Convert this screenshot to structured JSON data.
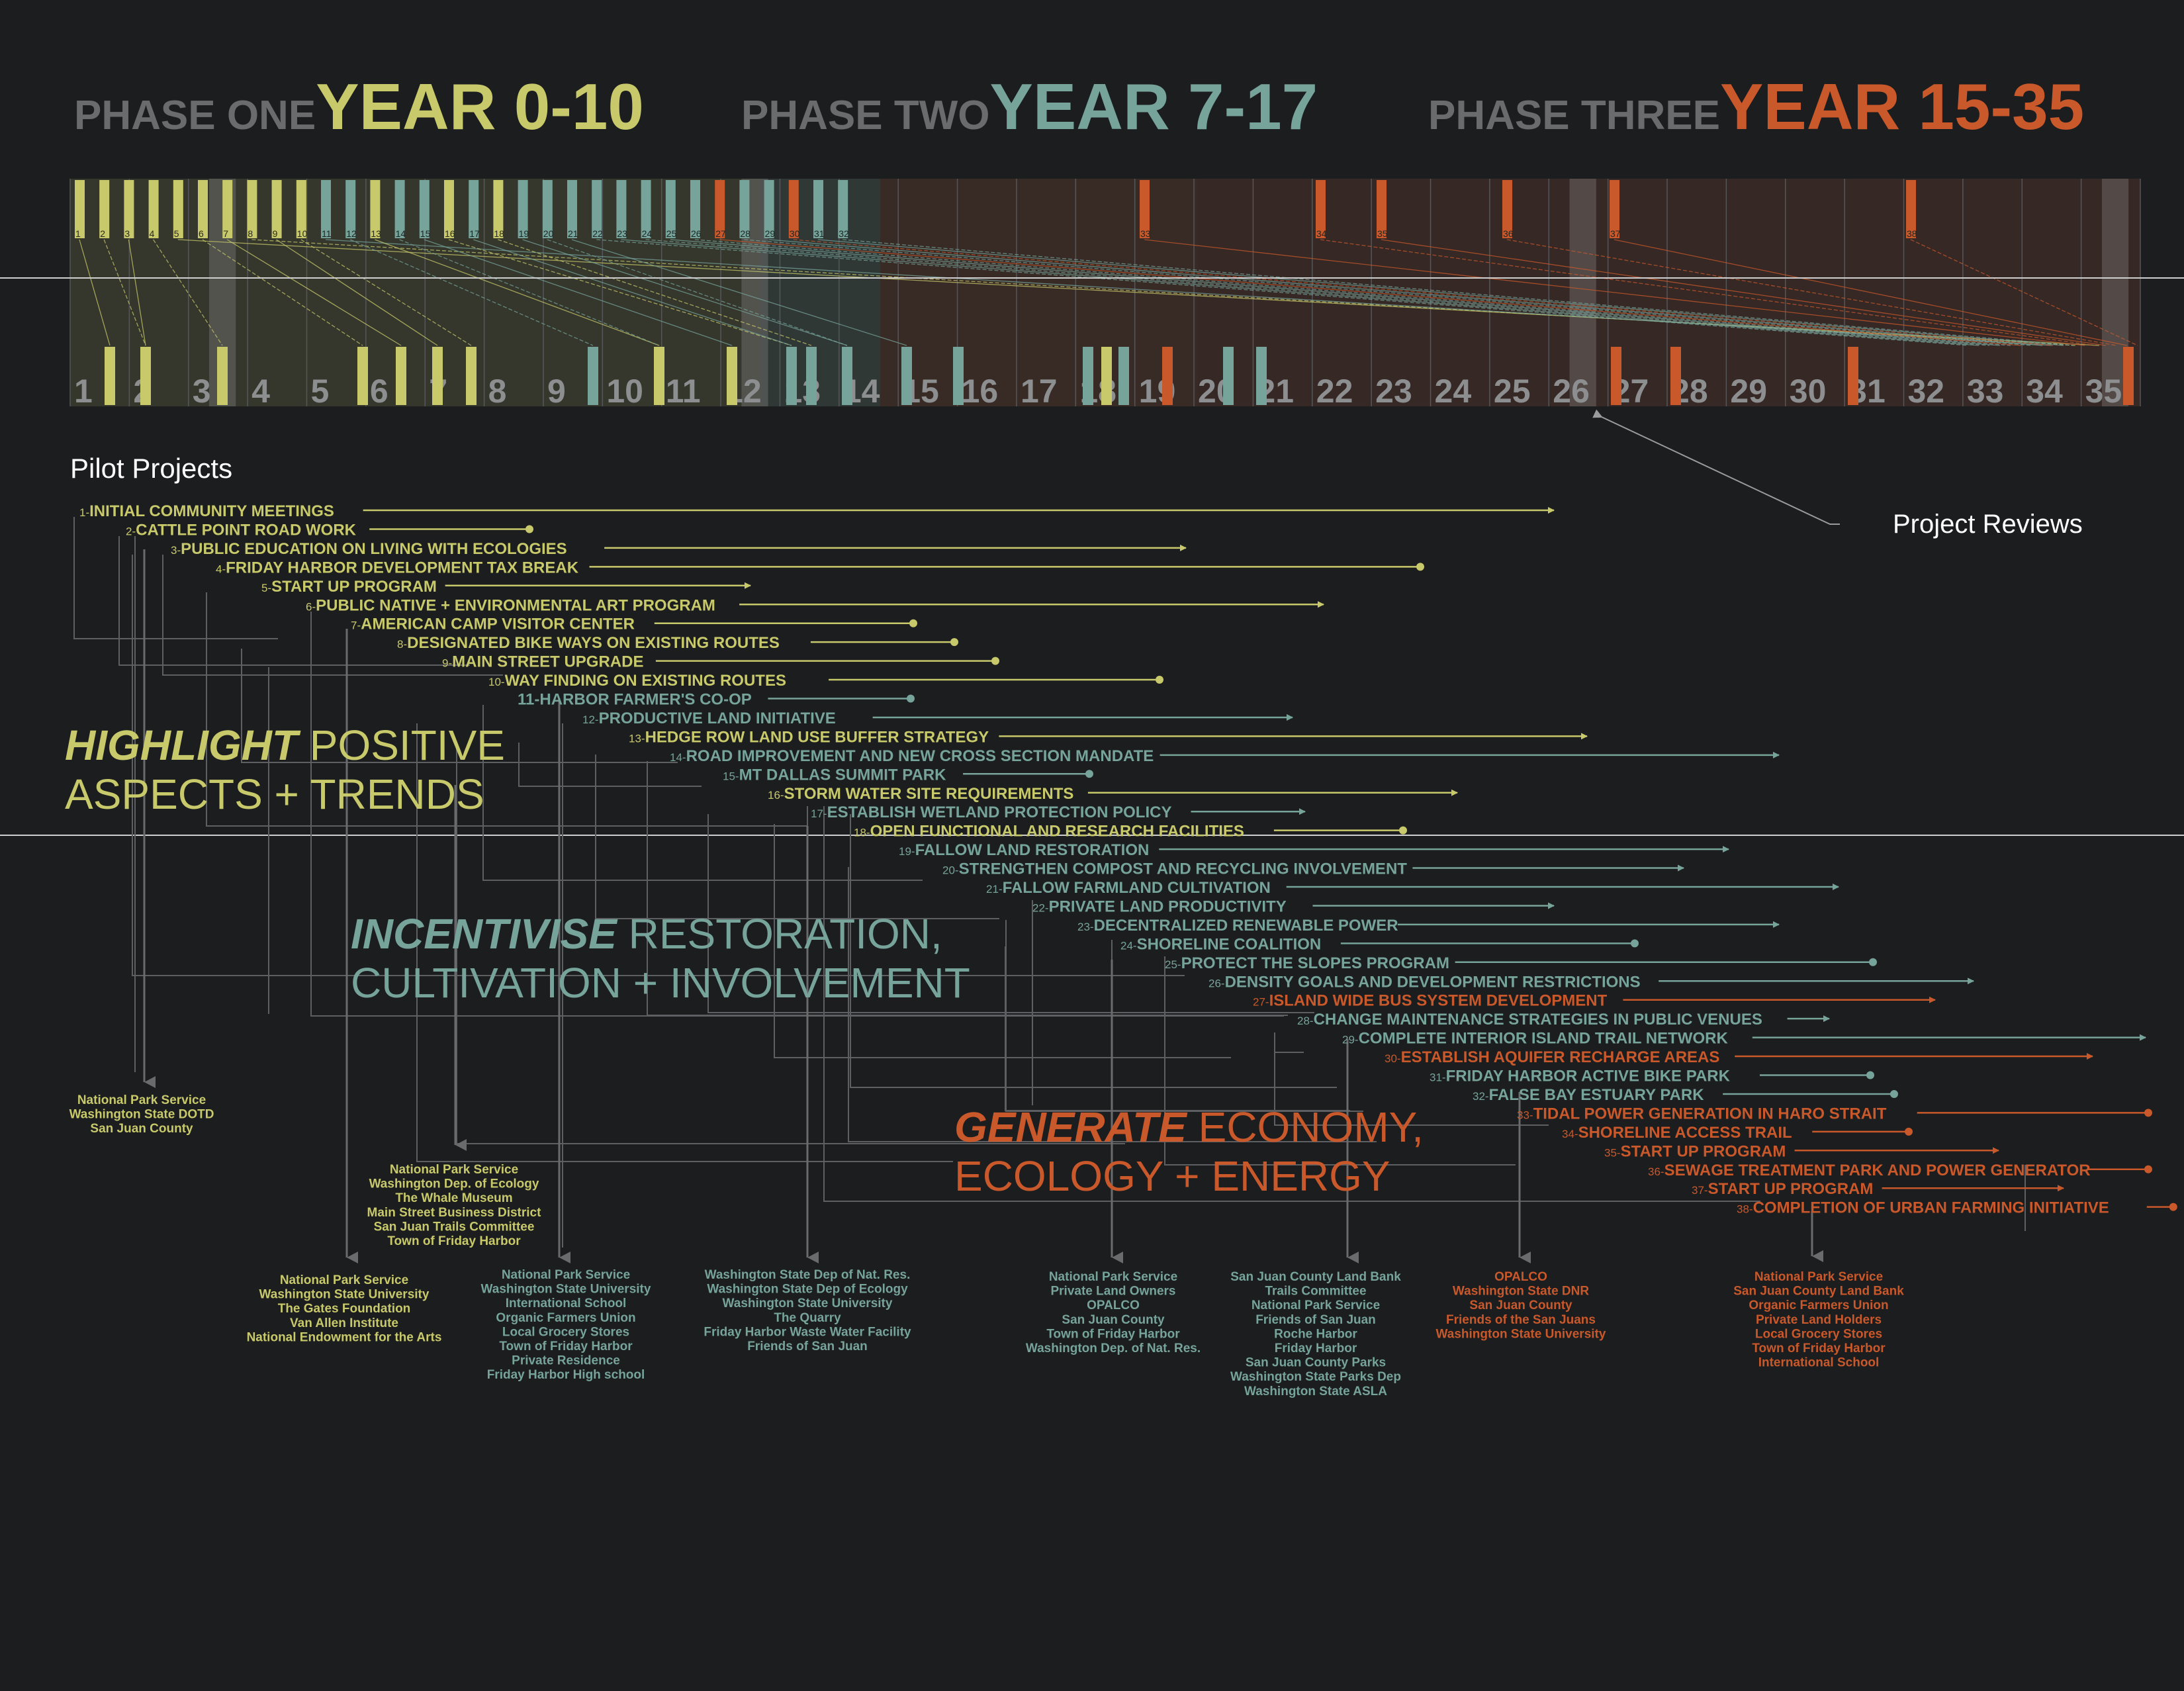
{
  "colors": {
    "bg": "#1c1d1f",
    "phase1": "#c8c96a",
    "phase2": "#76a39a",
    "phase3": "#c9582b",
    "gray": "#6a6b6d",
    "white": "#ffffff"
  },
  "phases": [
    {
      "label": "PHASE ONE",
      "years": "YEAR 0-10",
      "color": "#c8c96a"
    },
    {
      "label": "PHASE TWO",
      "years": "YEAR 7-17",
      "color": "#76a39a"
    },
    {
      "label": "PHASE THREE",
      "years": "YEAR 15-35",
      "color": "#c9582b"
    }
  ],
  "timeline": {
    "year_labels": [
      "1",
      "2",
      "3",
      "4",
      "5",
      "6",
      "7",
      "8",
      "9",
      "10",
      "11",
      "12",
      "13",
      "14",
      "15",
      "16",
      "17",
      "18",
      "19",
      "20",
      "21",
      "22",
      "23",
      "24",
      "25",
      "26",
      "27",
      "28",
      "29",
      "30",
      "31",
      "32",
      "33",
      "34",
      "35"
    ],
    "top_bars": [
      {
        "n": "1",
        "p": 1
      },
      {
        "n": "2",
        "p": 1
      },
      {
        "n": "3",
        "p": 1
      },
      {
        "n": "4",
        "p": 1
      },
      {
        "n": "5",
        "p": 1
      },
      {
        "n": "6",
        "p": 1
      },
      {
        "n": "7",
        "p": 1
      },
      {
        "n": "8",
        "p": 1
      },
      {
        "n": "9",
        "p": 1
      },
      {
        "n": "10",
        "p": 1
      },
      {
        "n": "11",
        "p": 2
      },
      {
        "n": "12",
        "p": 2
      },
      {
        "n": "13",
        "p": 1
      },
      {
        "n": "14",
        "p": 2
      },
      {
        "n": "15",
        "p": 2
      },
      {
        "n": "16",
        "p": 1
      },
      {
        "n": "17",
        "p": 2
      },
      {
        "n": "18",
        "p": 1
      },
      {
        "n": "19",
        "p": 2
      },
      {
        "n": "20",
        "p": 2
      },
      {
        "n": "21",
        "p": 2
      },
      {
        "n": "22",
        "p": 2
      },
      {
        "n": "23",
        "p": 2
      },
      {
        "n": "24",
        "p": 2
      },
      {
        "n": "25",
        "p": 2
      },
      {
        "n": "26",
        "p": 2
      },
      {
        "n": "27",
        "p": 3
      },
      {
        "n": "28",
        "p": 2
      },
      {
        "n": "29",
        "p": 2
      },
      {
        "n": "30",
        "p": 3
      },
      {
        "n": "31",
        "p": 2
      },
      {
        "n": "32",
        "p": 2
      },
      {
        "n": "33",
        "p": 3
      },
      {
        "n": "34",
        "p": 3
      },
      {
        "n": "35",
        "p": 3
      },
      {
        "n": "36",
        "p": 3
      },
      {
        "n": "37",
        "p": 3
      },
      {
        "n": "38",
        "p": 3
      }
    ]
  },
  "pilot_title": "Pilot Projects",
  "project_reviews": "Project Reviews",
  "projects": [
    {
      "n": "1-",
      "name": "INITIAL COMMUNITY MEETINGS",
      "p": 1,
      "end": "arrow"
    },
    {
      "n": "2-",
      "name": "CATTLE POINT ROAD WORK",
      "p": 1,
      "end": "dot"
    },
    {
      "n": "3-",
      "name": "PUBLIC EDUCATION ON LIVING WITH ECOLOGIES",
      "p": 1,
      "end": "arrow"
    },
    {
      "n": "4-",
      "name": "FRIDAY HARBOR DEVELOPMENT TAX BREAK",
      "p": 1,
      "end": "dot"
    },
    {
      "n": "5-",
      "name": "START UP PROGRAM",
      "p": 1,
      "end": "arrow"
    },
    {
      "n": "6-",
      "name": "PUBLIC NATIVE + ENVIRONMENTAL ART PROGRAM",
      "p": 1,
      "end": "arrow"
    },
    {
      "n": "7-",
      "name": "AMERICAN CAMP VISITOR CENTER",
      "p": 1,
      "end": "dot"
    },
    {
      "n": "8-",
      "name": "DESIGNATED BIKE WAYS ON EXISTING ROUTES",
      "p": 1,
      "end": "dot"
    },
    {
      "n": "9-",
      "name": "MAIN STREET UPGRADE",
      "p": 1,
      "end": "dot"
    },
    {
      "n": "10-",
      "name": "WAY FINDING  ON EXISTING ROUTES",
      "p": 1,
      "end": "dot"
    },
    {
      "n": "",
      "name": "11-HARBOR FARMER'S CO-OP",
      "p": 2,
      "end": "dot"
    },
    {
      "n": "12-",
      "name": "PRODUCTIVE LAND INITIATIVE",
      "p": 2,
      "end": "arrow"
    },
    {
      "n": "13-",
      "name": "HEDGE ROW LAND USE BUFFER STRATEGY",
      "p": 1,
      "end": "arrow"
    },
    {
      "n": "14-",
      "name": "ROAD IMPROVEMENT AND NEW CROSS SECTION MANDATE",
      "p": 2,
      "end": "arrow"
    },
    {
      "n": "15-",
      "name": "MT DALLAS SUMMIT PARK",
      "p": 2,
      "end": "dot"
    },
    {
      "n": "16-",
      "name": "STORM WATER SITE REQUIREMENTS",
      "p": 1,
      "end": "arrow"
    },
    {
      "n": "17-",
      "name": "ESTABLISH WETLAND PROTECTION POLICY",
      "p": 2,
      "end": "arrow"
    },
    {
      "n": "18-",
      "name": "OPEN FUNCTIONAL AND RESEARCH FACILITIES",
      "p": 1,
      "end": "dot"
    },
    {
      "n": "19-",
      "name": "FALLOW LAND RESTORATION",
      "p": 2,
      "end": "arrow"
    },
    {
      "n": "20-",
      "name": "STRENGTHEN COMPOST AND RECYCLING INVOLVEMENT",
      "p": 2,
      "end": "arrow"
    },
    {
      "n": "21-",
      "name": "FALLOW FARMLAND CULTIVATION",
      "p": 2,
      "end": "arrow"
    },
    {
      "n": "22-",
      "name": "PRIVATE LAND PRODUCTIVITY",
      "p": 2,
      "end": "arrow"
    },
    {
      "n": "23-",
      "name": "DECENTRALIZED RENEWABLE POWER",
      "p": 2,
      "end": "arrow"
    },
    {
      "n": "24-",
      "name": "SHORELINE COALITION",
      "p": 2,
      "end": "dot"
    },
    {
      "n": "25-",
      "name": "PROTECT THE SLOPES PROGRAM",
      "p": 2,
      "end": "dot"
    },
    {
      "n": "26-",
      "name": "DENSITY GOALS AND DEVELOPMENT RESTRICTIONS",
      "p": 2,
      "end": "arrow"
    },
    {
      "n": "27-",
      "name": "ISLAND WIDE BUS SYSTEM DEVELOPMENT",
      "p": 3,
      "end": "arrow"
    },
    {
      "n": "28-",
      "name": "CHANGE MAINTENANCE STRATEGIES IN PUBLIC VENUES",
      "p": 2,
      "end": "arrow"
    },
    {
      "n": "29-",
      "name": "COMPLETE INTERIOR ISLAND TRAIL NETWORK",
      "p": 2,
      "end": "arrow"
    },
    {
      "n": "30-",
      "name": "ESTABLISH AQUIFER RECHARGE AREAS",
      "p": 3,
      "end": "arrow"
    },
    {
      "n": "31-",
      "name": "FRIDAY HARBOR ACTIVE BIKE PARK",
      "p": 2,
      "end": "dot"
    },
    {
      "n": "32-",
      "name": "FALSE BAY ESTUARY PARK",
      "p": 2,
      "end": "dot"
    },
    {
      "n": "33-",
      "name": "TIDAL POWER GENERATION IN HARO STRAIT",
      "p": 3,
      "end": "dot"
    },
    {
      "n": "34-",
      "name": "SHORELINE ACCESS TRAIL",
      "p": 3,
      "end": "dot"
    },
    {
      "n": "35-",
      "name": "START UP PROGRAM",
      "p": 3,
      "end": "arrow"
    },
    {
      "n": "36-",
      "name": "SEWAGE TREATMENT PARK AND POWER GENERATOR",
      "p": 3,
      "end": "dot"
    },
    {
      "n": "37-",
      "name": "START UP PROGRAM",
      "p": 3,
      "end": "arrow"
    },
    {
      "n": "38-",
      "name": "COMPLETION OF URBAN FARMING INITIATIVE",
      "p": 3,
      "end": "dot"
    }
  ],
  "themes": [
    {
      "bold": "HIGHLIGHT",
      "rest": " POSITIVE",
      "line2": "ASPECTS + TRENDS",
      "color": "#c8c96a"
    },
    {
      "bold": "INCENTIVISE",
      "rest": " RESTORATION,",
      "line2": "CULTIVATION + INVOLVEMENT",
      "color": "#76a39a"
    },
    {
      "bold": "GENERATE",
      "rest": " ECONOMY,",
      "line2": "ECOLOGY + ENERGY",
      "color": "#c9582b"
    }
  ],
  "stakeholders": [
    {
      "p": 1,
      "lines": [
        "National Park Service",
        "Washington State DOTD",
        "San Juan County"
      ]
    },
    {
      "p": 1,
      "lines": [
        "National Park Service",
        "Washington Dep. of Ecology",
        "The Whale Museum",
        "Main Street Business District",
        "San Juan Trails Committee",
        "Town of Friday Harbor"
      ]
    },
    {
      "p": 1,
      "lines": [
        "National Park Service",
        "Washington State University",
        "The Gates Foundation",
        "Van Allen Institute",
        "National Endowment for the Arts"
      ]
    },
    {
      "p": 2,
      "lines": [
        "National Park Service",
        "Washington State University",
        "International School",
        "Organic Farmers Union",
        "Local Grocery Stores",
        "Town of Friday Harbor",
        "Private Residence",
        "Friday Harbor High school"
      ]
    },
    {
      "p": 2,
      "lines": [
        "Washington State Dep of Nat. Res.",
        "Washington State Dep of Ecology",
        "Washington State University",
        "The Quarry",
        "Friday Harbor Waste Water Facility",
        "Friends of San Juan"
      ]
    },
    {
      "p": 2,
      "lines": [
        "National Park Service",
        "Private Land Owners",
        "OPALCO",
        "San Juan County",
        "Town of Friday Harbor",
        "Washington Dep. of Nat. Res."
      ]
    },
    {
      "p": 2,
      "lines": [
        "San Juan County Land Bank",
        "Trails Committee",
        "National Park Service",
        "Friends of San Juan",
        "Roche Harbor",
        "Friday Harbor",
        "San Juan County Parks",
        "Washington State Parks Dep",
        "Washington State ASLA"
      ]
    },
    {
      "p": 3,
      "lines": [
        "OPALCO",
        "Washington State DNR",
        "San Juan County",
        "Friends of the San Juans",
        "Washington State University"
      ]
    },
    {
      "p": 3,
      "lines": [
        "National Park Service",
        "San Juan County Land Bank",
        "Organic Farmers Union",
        "Private Land Holders",
        "Local Grocery Stores",
        "Town of Friday Harbor",
        "International School"
      ]
    }
  ]
}
